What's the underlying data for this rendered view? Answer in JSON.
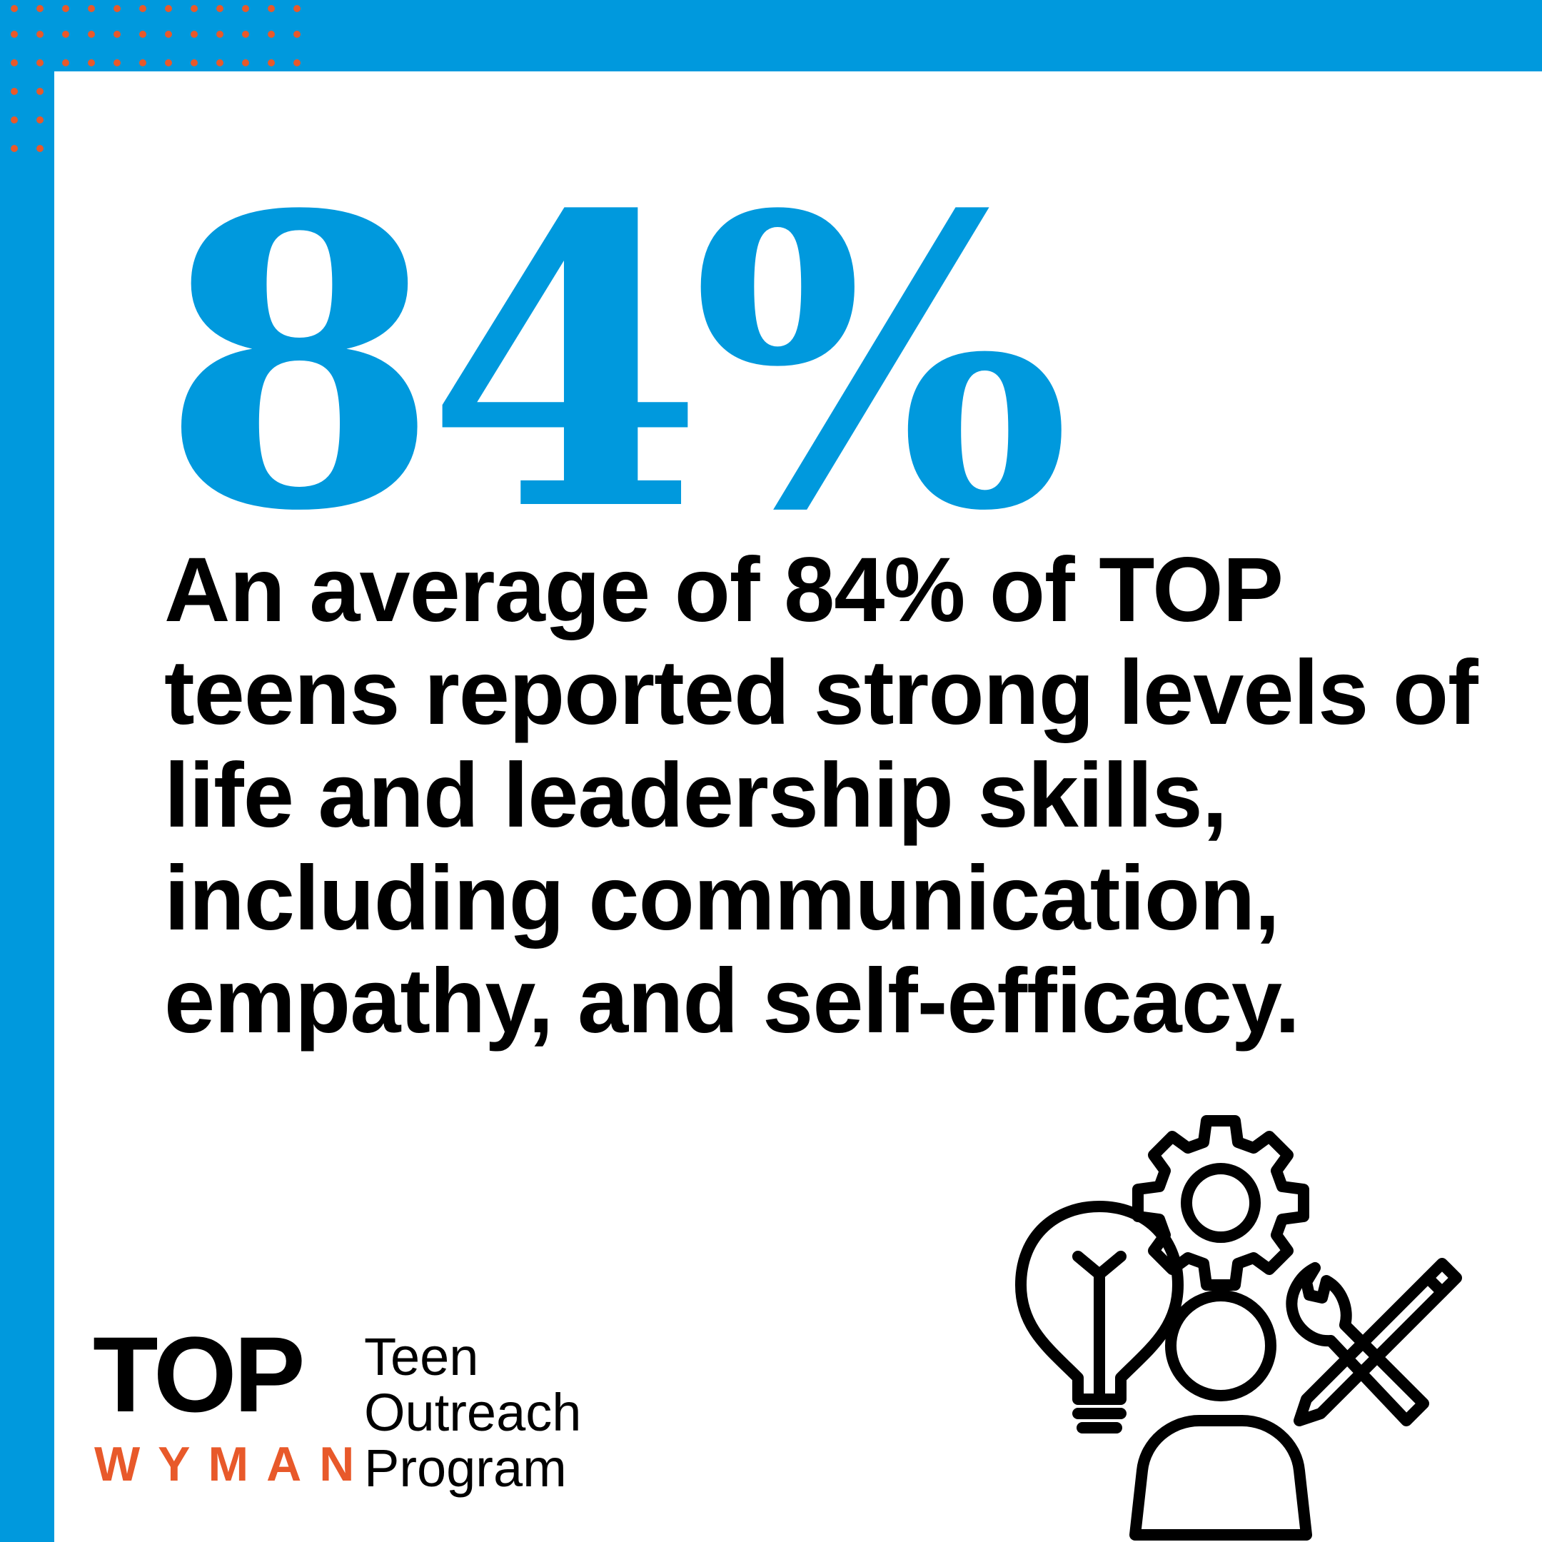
{
  "stat": {
    "value": "84%"
  },
  "headline": "An average of 84% of TOP teens reported strong levels of life and leadership skills, including communication, empathy, and self-efficacy.",
  "logo": {
    "mark": "TOP",
    "org": "WYMAN",
    "program_lines": [
      "Teen",
      "Outreach",
      "Program"
    ]
  },
  "colors": {
    "brand_blue": "#0099DD",
    "accent_orange": "#E8592A",
    "text": "#000000",
    "card": "#FFFFFF"
  },
  "icons": [
    "lightbulb-icon",
    "gear-icon",
    "person-icon",
    "wrench-icon",
    "pencil-icon"
  ]
}
